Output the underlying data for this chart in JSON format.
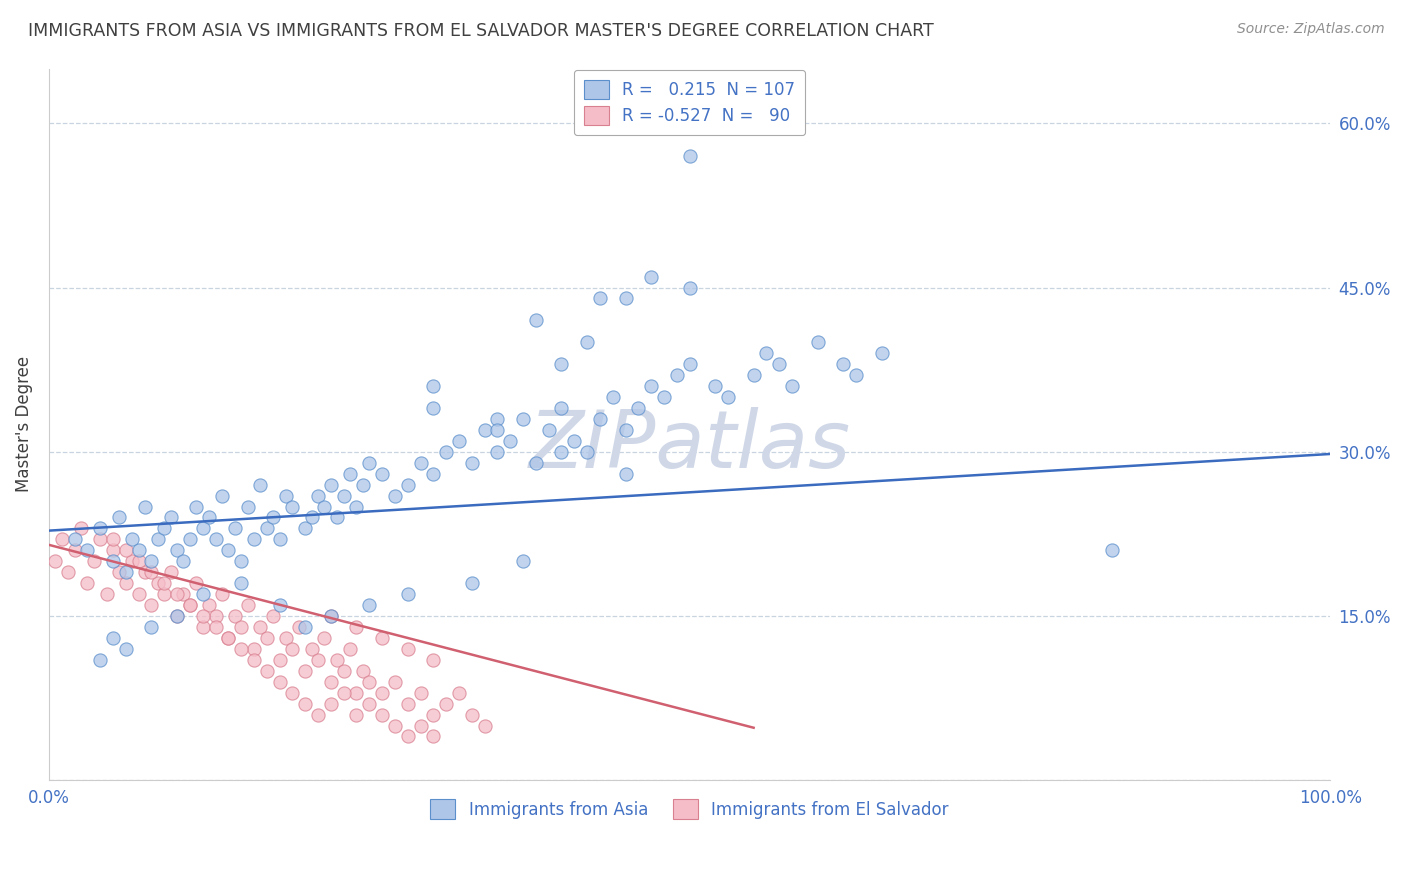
{
  "title": "IMMIGRANTS FROM ASIA VS IMMIGRANTS FROM EL SALVADOR MASTER'S DEGREE CORRELATION CHART",
  "source": "Source: ZipAtlas.com",
  "ylabel": "Master's Degree",
  "xlim": [
    0.0,
    1.0
  ],
  "ylim": [
    0.0,
    0.65
  ],
  "yticks": [
    0.0,
    0.15,
    0.3,
    0.45,
    0.6
  ],
  "ytick_labels": [
    "",
    "15.0%",
    "30.0%",
    "45.0%",
    "60.0%"
  ],
  "xticks": [
    0.0,
    1.0
  ],
  "xtick_labels": [
    "0.0%",
    "100.0%"
  ],
  "legend_r_asia": " 0.215",
  "legend_n_asia": "107",
  "legend_r_el_salvador": "-0.527",
  "legend_n_el_salvador": " 90",
  "blue_color": "#aec6e8",
  "blue_edge_color": "#5b8fcc",
  "blue_line_color": "#3a6bbf",
  "pink_color": "#f5bdc8",
  "pink_edge_color": "#d98090",
  "pink_line_color": "#d06070",
  "background_color": "#ffffff",
  "grid_color": "#c8d4e0",
  "title_color": "#404040",
  "source_color": "#909090",
  "ylabel_color": "#404040",
  "tick_label_color": "#4472c4",
  "watermark_text": "ZIPatlas",
  "watermark_color": "#d0d8e8",
  "asia_x": [
    0.02,
    0.03,
    0.04,
    0.05,
    0.055,
    0.06,
    0.065,
    0.07,
    0.075,
    0.08,
    0.085,
    0.09,
    0.095,
    0.1,
    0.105,
    0.11,
    0.115,
    0.12,
    0.125,
    0.13,
    0.135,
    0.14,
    0.145,
    0.15,
    0.155,
    0.16,
    0.165,
    0.17,
    0.175,
    0.18,
    0.185,
    0.19,
    0.2,
    0.205,
    0.21,
    0.215,
    0.22,
    0.225,
    0.23,
    0.235,
    0.24,
    0.245,
    0.25,
    0.26,
    0.27,
    0.28,
    0.29,
    0.3,
    0.31,
    0.32,
    0.33,
    0.34,
    0.35,
    0.36,
    0.37,
    0.38,
    0.39,
    0.4,
    0.41,
    0.42,
    0.43,
    0.44,
    0.45,
    0.46,
    0.47,
    0.48,
    0.49,
    0.5,
    0.52,
    0.53,
    0.55,
    0.56,
    0.57,
    0.58,
    0.6,
    0.62,
    0.63,
    0.65,
    0.3,
    0.35,
    0.4,
    0.42,
    0.45,
    0.47,
    0.5,
    0.38,
    0.43,
    0.3,
    0.35,
    0.4,
    0.45,
    0.37,
    0.33,
    0.28,
    0.25,
    0.22,
    0.2,
    0.18,
    0.15,
    0.12,
    0.1,
    0.08,
    0.06,
    0.05,
    0.04,
    0.83,
    0.5
  ],
  "asia_y": [
    0.22,
    0.21,
    0.23,
    0.2,
    0.24,
    0.19,
    0.22,
    0.21,
    0.25,
    0.2,
    0.22,
    0.23,
    0.24,
    0.21,
    0.2,
    0.22,
    0.25,
    0.23,
    0.24,
    0.22,
    0.26,
    0.21,
    0.23,
    0.2,
    0.25,
    0.22,
    0.27,
    0.23,
    0.24,
    0.22,
    0.26,
    0.25,
    0.23,
    0.24,
    0.26,
    0.25,
    0.27,
    0.24,
    0.26,
    0.28,
    0.25,
    0.27,
    0.29,
    0.28,
    0.26,
    0.27,
    0.29,
    0.28,
    0.3,
    0.31,
    0.29,
    0.32,
    0.3,
    0.31,
    0.33,
    0.29,
    0.32,
    0.34,
    0.31,
    0.3,
    0.33,
    0.35,
    0.32,
    0.34,
    0.36,
    0.35,
    0.37,
    0.38,
    0.36,
    0.35,
    0.37,
    0.39,
    0.38,
    0.36,
    0.4,
    0.38,
    0.37,
    0.39,
    0.36,
    0.33,
    0.38,
    0.4,
    0.44,
    0.46,
    0.45,
    0.42,
    0.44,
    0.34,
    0.32,
    0.3,
    0.28,
    0.2,
    0.18,
    0.17,
    0.16,
    0.15,
    0.14,
    0.16,
    0.18,
    0.17,
    0.15,
    0.14,
    0.12,
    0.13,
    0.11,
    0.21,
    0.57
  ],
  "el_salvador_x": [
    0.005,
    0.01,
    0.015,
    0.02,
    0.025,
    0.03,
    0.035,
    0.04,
    0.045,
    0.05,
    0.055,
    0.06,
    0.065,
    0.07,
    0.075,
    0.08,
    0.085,
    0.09,
    0.095,
    0.1,
    0.105,
    0.11,
    0.115,
    0.12,
    0.125,
    0.13,
    0.135,
    0.14,
    0.145,
    0.15,
    0.155,
    0.16,
    0.165,
    0.17,
    0.175,
    0.18,
    0.185,
    0.19,
    0.195,
    0.2,
    0.205,
    0.21,
    0.215,
    0.22,
    0.225,
    0.23,
    0.235,
    0.24,
    0.245,
    0.25,
    0.26,
    0.27,
    0.28,
    0.29,
    0.3,
    0.31,
    0.32,
    0.33,
    0.34,
    0.22,
    0.24,
    0.26,
    0.28,
    0.3,
    0.05,
    0.06,
    0.07,
    0.08,
    0.09,
    0.1,
    0.11,
    0.12,
    0.13,
    0.14,
    0.15,
    0.16,
    0.17,
    0.18,
    0.19,
    0.2,
    0.21,
    0.22,
    0.23,
    0.24,
    0.25,
    0.26,
    0.27,
    0.28,
    0.29,
    0.3
  ],
  "el_salvador_y": [
    0.2,
    0.22,
    0.19,
    0.21,
    0.23,
    0.18,
    0.2,
    0.22,
    0.17,
    0.21,
    0.19,
    0.18,
    0.2,
    0.17,
    0.19,
    0.16,
    0.18,
    0.17,
    0.19,
    0.15,
    0.17,
    0.16,
    0.18,
    0.14,
    0.16,
    0.15,
    0.17,
    0.13,
    0.15,
    0.14,
    0.16,
    0.12,
    0.14,
    0.13,
    0.15,
    0.11,
    0.13,
    0.12,
    0.14,
    0.1,
    0.12,
    0.11,
    0.13,
    0.09,
    0.11,
    0.1,
    0.12,
    0.08,
    0.1,
    0.09,
    0.08,
    0.09,
    0.07,
    0.08,
    0.06,
    0.07,
    0.08,
    0.06,
    0.05,
    0.15,
    0.14,
    0.13,
    0.12,
    0.11,
    0.22,
    0.21,
    0.2,
    0.19,
    0.18,
    0.17,
    0.16,
    0.15,
    0.14,
    0.13,
    0.12,
    0.11,
    0.1,
    0.09,
    0.08,
    0.07,
    0.06,
    0.07,
    0.08,
    0.06,
    0.07,
    0.06,
    0.05,
    0.04,
    0.05,
    0.04
  ],
  "blue_trend_x": [
    0.0,
    1.0
  ],
  "blue_trend_y": [
    0.228,
    0.298
  ],
  "pink_trend_x": [
    0.0,
    0.55
  ],
  "pink_trend_y": [
    0.215,
    0.048
  ]
}
